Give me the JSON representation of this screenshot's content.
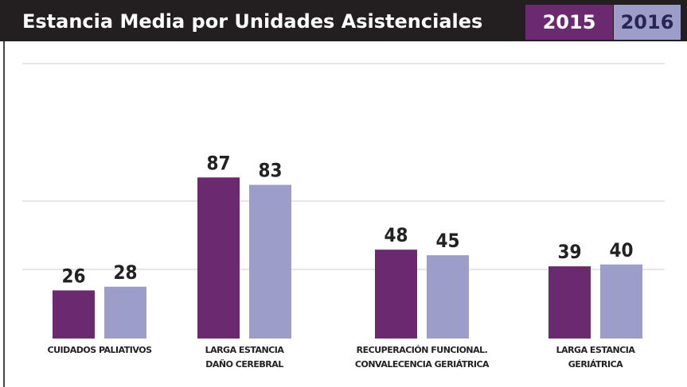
{
  "chart_data": {
    "type": "bar",
    "title": "Estancia Media por Unidades Asistenciales",
    "categories": [
      [
        "CUIDADOS PALIATIVOS"
      ],
      [
        "LARGA ESTANCIA",
        "DAÑO CEREBRAL"
      ],
      [
        "RECUPERACIÓN FUNCIONAL.",
        "CONVALECENCIA GERIÁTRICA"
      ],
      [
        "LARGA ESTANCIA",
        "GERIÁTRICA"
      ]
    ],
    "series": [
      {
        "name": "2015",
        "color": "#6b2a6f",
        "values": [
          26,
          87,
          48,
          39
        ]
      },
      {
        "name": "2016",
        "color": "#9c9dc9",
        "values": [
          28,
          83,
          45,
          40
        ]
      }
    ],
    "ylim": [
      0,
      100
    ]
  }
}
